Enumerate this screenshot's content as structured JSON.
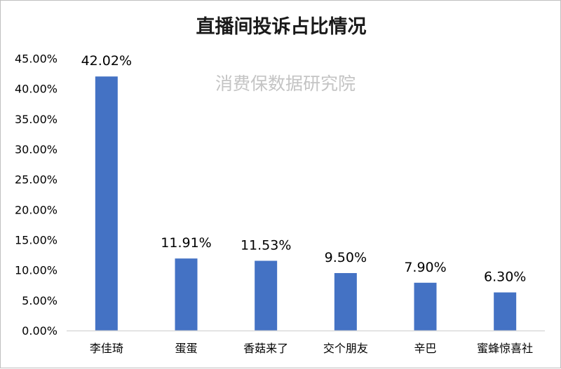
{
  "chart_data": {
    "type": "bar",
    "title": "直播间投诉占比情况",
    "watermark": "消费保数据研究院",
    "categories": [
      "李佳琦",
      "蛋蛋",
      "香菇来了",
      "交个朋友",
      "辛巴",
      "蜜蜂惊喜社"
    ],
    "values": [
      42.02,
      11.91,
      11.53,
      9.5,
      7.9,
      6.3
    ],
    "data_labels": [
      "42.02%",
      "11.91%",
      "11.53%",
      "9.50%",
      "7.90%",
      "6.30%"
    ],
    "y_ticks": [
      "0.00%",
      "5.00%",
      "10.00%",
      "15.00%",
      "20.00%",
      "25.00%",
      "30.00%",
      "35.00%",
      "40.00%",
      "45.00%"
    ],
    "ylim": [
      0,
      45
    ],
    "xlabel": "",
    "ylabel": "",
    "grid": false,
    "legend": "none",
    "colors": {
      "bar": "#4472C4",
      "axis": "#d9d9d9"
    }
  }
}
